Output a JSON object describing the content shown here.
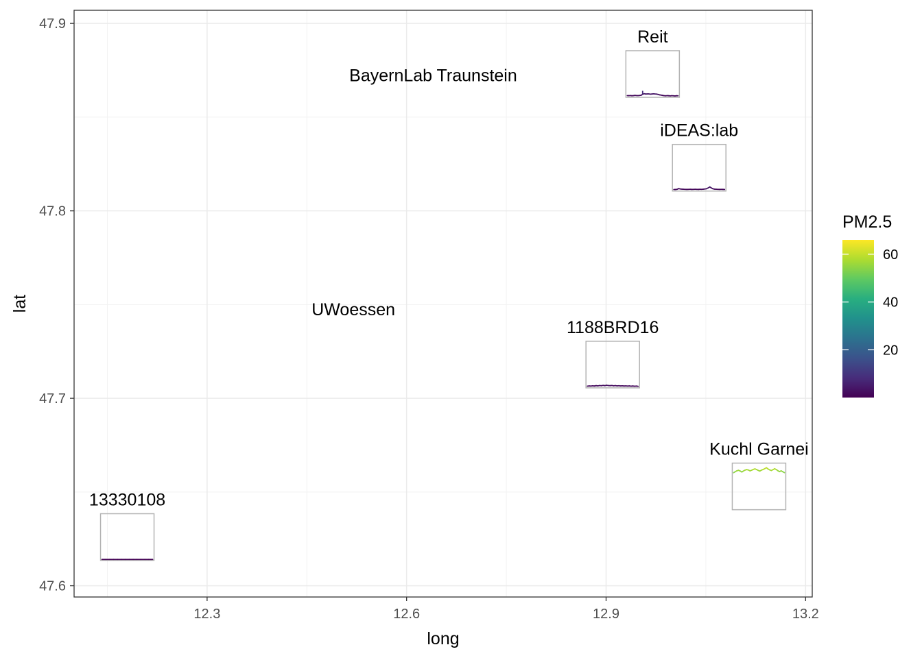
{
  "chart_data": {
    "type": "map",
    "xlabel": "long",
    "ylabel": "lat",
    "xlim": [
      12.1,
      13.21
    ],
    "ylim": [
      47.594,
      47.907
    ],
    "x_ticks": [
      12.3,
      12.6,
      12.9,
      13.2
    ],
    "x_tick_labels": [
      "12.3",
      "12.6",
      "12.9",
      "13.2"
    ],
    "y_ticks": [
      47.6,
      47.7,
      47.8,
      47.9
    ],
    "y_tick_labels": [
      "47.6",
      "47.7",
      "47.8",
      "47.9"
    ],
    "grid": true,
    "legend": {
      "title": "PM2.5",
      "position": "right",
      "range": [
        0,
        66
      ],
      "breaks": [
        20,
        40,
        60
      ],
      "break_labels": [
        "20",
        "40",
        "60"
      ],
      "palette": "viridis"
    },
    "sites": [
      {
        "name": "BayernLab Traunstein",
        "long": 12.64,
        "lat": 47.8725,
        "has_series": false
      },
      {
        "name": "Reit",
        "long": 12.97,
        "lat": 47.873,
        "has_series": true,
        "pm25": [
          1.5,
          1.4,
          1.6,
          1.3,
          1.5,
          1.8,
          1.6,
          1.5,
          1.7,
          2.0,
          3.5,
          4.2,
          3.8,
          3.9,
          4.0,
          3.6,
          3.8,
          4.1,
          3.9,
          3.7,
          3.2,
          2.6,
          2.2,
          1.8,
          1.4,
          1.2,
          1.5,
          1.3,
          1.1,
          1.4,
          1.2,
          1.0,
          1.3,
          1.2
        ],
        "pm25_spikes": [
          [
            10,
            8.5
          ]
        ]
      },
      {
        "name": "iDEAS:lab",
        "long": 13.04,
        "lat": 47.823,
        "has_series": true,
        "pm25": [
          1.2,
          1.3,
          1.5,
          2.6,
          2.0,
          1.8,
          1.6,
          1.5,
          1.4,
          1.5,
          1.6,
          1.4,
          1.5,
          1.6,
          1.5,
          1.4,
          1.6,
          1.5,
          1.7,
          2.0,
          2.4,
          3.6,
          5.0,
          3.4,
          2.2,
          1.8,
          1.6,
          1.5,
          1.4,
          1.5,
          1.4,
          1.3
        ],
        "pm25_spikes": []
      },
      {
        "name": "UWoessen",
        "long": 12.52,
        "lat": 47.7475,
        "has_series": false
      },
      {
        "name": "1188BRD16",
        "long": 12.91,
        "lat": 47.718,
        "has_series": true,
        "pm25": [
          1.5,
          1.8,
          1.6,
          2.0,
          1.7,
          2.2,
          1.9,
          2.4,
          2.1,
          2.6,
          2.2,
          2.8,
          2.4,
          2.2,
          2.5,
          2.0,
          2.3,
          1.9,
          2.1,
          1.8,
          2.0,
          1.7,
          1.9,
          1.6,
          1.8,
          1.5,
          1.7,
          1.4,
          1.6,
          1.3
        ],
        "pm25_spikes": []
      },
      {
        "name": "Kuchl Garnei",
        "long": 13.13,
        "lat": 47.653,
        "has_series": true,
        "pm25": [
          53.0,
          54.5,
          55.8,
          56.5,
          55.4,
          54.0,
          55.5,
          56.8,
          57.5,
          56.9,
          55.7,
          56.6,
          57.8,
          58.6,
          57.6,
          56.3,
          55.4,
          56.8,
          57.7,
          58.9,
          60.3,
          58.4,
          57.1,
          56.2,
          57.4,
          58.8,
          57.6,
          55.9,
          54.6,
          55.7,
          54.4,
          53.1
        ],
        "pm25_spikes": []
      },
      {
        "name": "13330108",
        "long": 12.18,
        "lat": 47.626,
        "has_series": true,
        "pm25": [
          0.3,
          0.3,
          0.3,
          0.3,
          0.3,
          0.3,
          0.3,
          0.3,
          0.3,
          0.3,
          0.3,
          0.3,
          0.3,
          0.3
        ],
        "pm25_spikes": []
      }
    ]
  }
}
